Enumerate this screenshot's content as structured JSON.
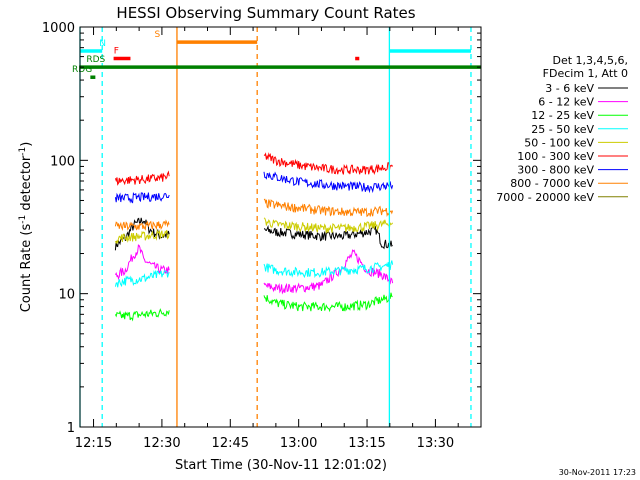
{
  "chart_data": {
    "type": "line",
    "title": "HESSI Observing Summary Count Rates",
    "xlabel": "Start Time (30-Nov-11 12:01:02)",
    "ylabel_main": "Count Rate (s",
    "ylabel_sup1": "-1",
    "ylabel_mid": " detector",
    "ylabel_sup2": "-1",
    "ylabel_end": ")",
    "yscale": "log",
    "ylim": [
      1,
      1000
    ],
    "xlim_minutes": [
      12.03,
      100.0
    ],
    "y_ticks": [
      {
        "value": 1,
        "label": "1"
      },
      {
        "value": 10,
        "label": "10"
      },
      {
        "value": 100,
        "label": "100"
      },
      {
        "value": 1000,
        "label": "1000"
      }
    ],
    "x_ticks": [
      {
        "value": 15,
        "label": "12:15"
      },
      {
        "value": 30,
        "label": "12:30"
      },
      {
        "value": 45,
        "label": "12:45"
      },
      {
        "value": 60,
        "label": "13:00"
      },
      {
        "value": 75,
        "label": "13:15"
      },
      {
        "value": 90,
        "label": "13:30"
      }
    ],
    "legend_header": [
      "Det 1,3,4,5,6,",
      "FDecim 1, Att 0"
    ],
    "series": [
      {
        "name": "3 - 6 keV",
        "color": "#000000",
        "segments": [
          {
            "x": [
              19.8,
              22,
              24,
              26,
              27,
              28,
              30,
              31.6
            ],
            "y": [
              23,
              26,
              33,
              36,
              31,
              29,
              27,
              28
            ]
          },
          {
            "x": [
              52.4,
              55,
              60,
              65,
              70,
              75,
              77,
              78.2,
              80.6
            ],
            "y": [
              30,
              29,
              28,
              27,
              27,
              29,
              30,
              24,
              23
            ]
          }
        ]
      },
      {
        "name": "6 - 12 keV",
        "color": "#ff00ff",
        "segments": [
          {
            "x": [
              19.8,
              22,
              24,
              25,
              26,
              28,
              30,
              31.6
            ],
            "y": [
              13.5,
              15,
              20,
              22,
              18,
              16,
              15,
              15
            ]
          },
          {
            "x": [
              52.4,
              55,
              60,
              65,
              69,
              72,
              75,
              78.2,
              80.6
            ],
            "y": [
              11.5,
              11,
              11,
              11.5,
              15,
              20,
              15,
              14,
              12
            ]
          }
        ]
      },
      {
        "name": "12 - 25 keV",
        "color": "#00ff00",
        "segments": [
          {
            "x": [
              19.8,
              22,
              26,
              30,
              31.6
            ],
            "y": [
              6.8,
              6.8,
              7,
              7.2,
              7.5
            ]
          },
          {
            "x": [
              52.4,
              55,
              60,
              65,
              70,
              75,
              78.2,
              80.6
            ],
            "y": [
              9.5,
              8.5,
              8,
              8,
              8,
              8.3,
              9,
              9.5
            ]
          }
        ]
      },
      {
        "name": "25 - 50 keV",
        "color": "#00ffff",
        "segments": [
          {
            "x": [
              19.8,
              22,
              26,
              30,
              31.6
            ],
            "y": [
              12,
              12.5,
              13,
              14,
              14.5
            ]
          },
          {
            "x": [
              52.4,
              55,
              60,
              65,
              70,
              75,
              78.2,
              80.6
            ],
            "y": [
              16,
              15,
              14.5,
              14.5,
              15,
              15.5,
              16,
              16.5
            ]
          }
        ]
      },
      {
        "name": "50 - 100 keV",
        "color": "#cccc00",
        "segments": [
          {
            "x": [
              19.8,
              22,
              26,
              30,
              31.6
            ],
            "y": [
              26,
              26.5,
              27,
              28,
              28
            ]
          },
          {
            "x": [
              52.4,
              55,
              60,
              65,
              70,
              75,
              78.2,
              80.6
            ],
            "y": [
              35,
              33,
              32,
              31,
              31,
              32,
              33,
              34
            ]
          }
        ]
      },
      {
        "name": "100 - 300 keV",
        "color": "#ff0000",
        "segments": [
          {
            "x": [
              19.8,
              22,
              26,
              30,
              31.6
            ],
            "y": [
              70,
              71,
              72,
              74,
              76
            ]
          },
          {
            "x": [
              52.4,
              55,
              60,
              65,
              70,
              75,
              78.2,
              80.6
            ],
            "y": [
              108,
              100,
              92,
              87,
              85,
              85,
              88,
              90
            ]
          }
        ]
      },
      {
        "name": "300 - 800 keV",
        "color": "#0000ff",
        "segments": [
          {
            "x": [
              19.8,
              22,
              26,
              30,
              31.6
            ],
            "y": [
              52,
              52,
              53,
              54,
              55
            ]
          },
          {
            "x": [
              52.4,
              55,
              60,
              65,
              70,
              75,
              78.2,
              80.6
            ],
            "y": [
              80,
              75,
              69,
              66,
              64,
              63,
              64,
              65
            ]
          }
        ]
      },
      {
        "name": "800 - 7000 keV",
        "color": "#ff8000",
        "segments": [
          {
            "x": [
              19.8,
              22,
              26,
              30,
              31.6
            ],
            "y": [
              32,
              32,
              32,
              33,
              33
            ]
          },
          {
            "x": [
              52.4,
              55,
              60,
              65,
              70,
              75,
              78.2,
              80.6
            ],
            "y": [
              48,
              46,
              44,
              42,
              41,
              41,
              42,
              42
            ]
          }
        ]
      },
      {
        "name": "7000 - 20000 keV",
        "color": "#808000",
        "segments": []
      }
    ],
    "status_flags": [
      {
        "label": "N",
        "color": "#00ffff",
        "level_y": 660,
        "label_x": 17,
        "spans": [
          [
            12.03,
            16.9
          ],
          [
            79.9,
            97.8
          ]
        ]
      },
      {
        "label": "S",
        "color": "#ff8000",
        "level_y": 770,
        "label_x": 29,
        "spans": [
          [
            33.3,
            50.9
          ]
        ]
      },
      {
        "label": "F",
        "color": "#ff0000",
        "level_y": 580,
        "label_x": 20,
        "spans": [
          [
            19.4,
            23.1
          ],
          [
            72.4,
            73.3
          ]
        ]
      },
      {
        "label": "RDS",
        "color": "#008000",
        "level_y": 500,
        "label_x": 15.5,
        "spans": [
          [
            12.03,
            100.0
          ]
        ]
      },
      {
        "label": "RDG",
        "color": "#008000",
        "level_y": 420,
        "label_x": 12.5,
        "spans": [
          [
            14.3,
            15.4
          ]
        ]
      }
    ],
    "vertical_lines": [
      {
        "x": 12.03,
        "color": "#00ffff",
        "style": "solid"
      },
      {
        "x": 16.9,
        "color": "#00ffff",
        "style": "dashed"
      },
      {
        "x": 79.9,
        "color": "#00ffff",
        "style": "solid"
      },
      {
        "x": 97.8,
        "color": "#00ffff",
        "style": "dashed"
      },
      {
        "x": 33.3,
        "color": "#ff8000",
        "style": "solid"
      },
      {
        "x": 50.9,
        "color": "#ff8000",
        "style": "dashed"
      }
    ]
  },
  "footer_timestamp": "30-Nov-2011 17:23"
}
